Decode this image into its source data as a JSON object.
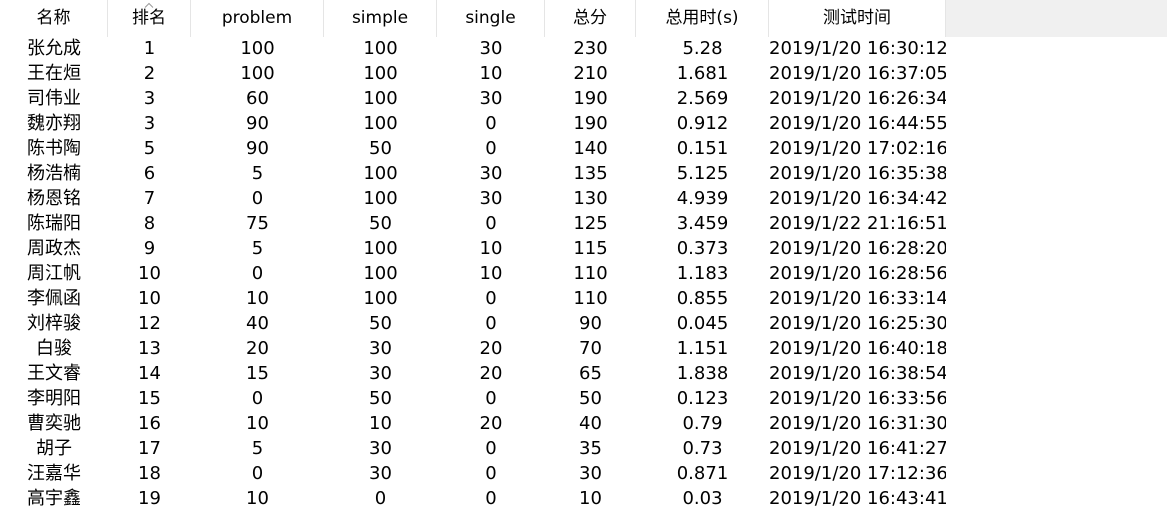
{
  "table": {
    "columns": [
      "名称",
      "排名",
      "problem",
      "simple",
      "single",
      "总分",
      "总用时(s)",
      "测试时间"
    ],
    "sorted_column_index": 1,
    "rows": [
      [
        "张允成",
        "1",
        "100",
        "100",
        "30",
        "230",
        "5.28",
        "2019/1/20 16:30:12"
      ],
      [
        "王在烜",
        "2",
        "100",
        "100",
        "10",
        "210",
        "1.681",
        "2019/1/20 16:37:05"
      ],
      [
        "司伟业",
        "3",
        "60",
        "100",
        "30",
        "190",
        "2.569",
        "2019/1/20 16:26:34"
      ],
      [
        "魏亦翔",
        "3",
        "90",
        "100",
        "0",
        "190",
        "0.912",
        "2019/1/20 16:44:55"
      ],
      [
        "陈书陶",
        "5",
        "90",
        "50",
        "0",
        "140",
        "0.151",
        "2019/1/20 17:02:16"
      ],
      [
        "杨浩楠",
        "6",
        "5",
        "100",
        "30",
        "135",
        "5.125",
        "2019/1/20 16:35:38"
      ],
      [
        "杨恩铭",
        "7",
        "0",
        "100",
        "30",
        "130",
        "4.939",
        "2019/1/20 16:34:42"
      ],
      [
        "陈瑞阳",
        "8",
        "75",
        "50",
        "0",
        "125",
        "3.459",
        "2019/1/22 21:16:51"
      ],
      [
        "周政杰",
        "9",
        "5",
        "100",
        "10",
        "115",
        "0.373",
        "2019/1/20 16:28:20"
      ],
      [
        "周江帆",
        "10",
        "0",
        "100",
        "10",
        "110",
        "1.183",
        "2019/1/20 16:28:56"
      ],
      [
        "李佩函",
        "10",
        "10",
        "100",
        "0",
        "110",
        "0.855",
        "2019/1/20 16:33:14"
      ],
      [
        "刘梓骏",
        "12",
        "40",
        "50",
        "0",
        "90",
        "0.045",
        "2019/1/20 16:25:30"
      ],
      [
        "白骏",
        "13",
        "20",
        "30",
        "20",
        "70",
        "1.151",
        "2019/1/20 16:40:18"
      ],
      [
        "王文睿",
        "14",
        "15",
        "30",
        "20",
        "65",
        "1.838",
        "2019/1/20 16:38:54"
      ],
      [
        "李明阳",
        "15",
        "0",
        "50",
        "0",
        "50",
        "0.123",
        "2019/1/20 16:33:56"
      ],
      [
        "曹奕驰",
        "16",
        "10",
        "10",
        "20",
        "40",
        "0.79",
        "2019/1/20 16:31:30"
      ],
      [
        "胡子",
        "17",
        "5",
        "30",
        "0",
        "35",
        "0.73",
        "2019/1/20 16:41:27"
      ],
      [
        "汪嘉华",
        "18",
        "0",
        "30",
        "0",
        "30",
        "0.871",
        "2019/1/20 17:12:36"
      ],
      [
        "高宇鑫",
        "19",
        "10",
        "0",
        "0",
        "10",
        "0.03",
        "2019/1/20 16:43:41"
      ]
    ]
  },
  "icons": {
    "sort": "sort-ascending-icon"
  },
  "colors": {
    "header_background": "#ffffff",
    "header_filler": "#f0f0f0",
    "column_divider": "#e5e5e5",
    "text": "#000000"
  }
}
